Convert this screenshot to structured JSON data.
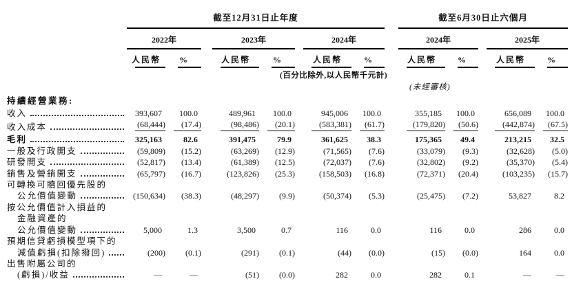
{
  "table": {
    "header": {
      "annual_title": "截至12月31日止年度",
      "interim_title": "截至6月30日止六個月",
      "years": [
        "2022年",
        "2023年",
        "2024年",
        "2024年",
        "2025年"
      ],
      "currency_label": "人民幣",
      "percent_label": "%",
      "note": "(百分比除外,以人民幣千元計)",
      "unaudited": "(未經審核)"
    },
    "rows": [
      {
        "type": "section",
        "label": "持續經營業務:"
      },
      {
        "lines": [
          {
            "t": "收入",
            "i": 0
          }
        ],
        "dots": true,
        "values": [
          "393,607",
          "100.0",
          "489,961",
          "100.0",
          "945,006",
          "100.0",
          "355,185",
          "100.0",
          "656,089",
          "100.0"
        ]
      },
      {
        "lines": [
          {
            "t": "收入成本",
            "i": 0
          }
        ],
        "dots": true,
        "rule": true,
        "values": [
          "(68,444)",
          "(17.4)",
          "(98,486)",
          "(20.1)",
          "(583,381)",
          "(61.7)",
          "(179,820)",
          "(50.6)",
          "(442,874)",
          "(67.5)"
        ]
      },
      {
        "lines": [
          {
            "t": "毛利",
            "i": 0
          }
        ],
        "dots": true,
        "bold": true,
        "gross": true,
        "values": [
          "325,163",
          "82.6",
          "391,475",
          "79.9",
          "361,625",
          "38.3",
          "175,365",
          "49.4",
          "213,215",
          "32.5"
        ]
      },
      {
        "lines": [
          {
            "t": "一般及行政開支",
            "i": 0
          }
        ],
        "dots": true,
        "values": [
          "(59,809)",
          "(15.2)",
          "(63,269)",
          "(12.9)",
          "(71,565)",
          "(7.6)",
          "(33,079)",
          "(9.3)",
          "(32,628)",
          "(5.0)"
        ]
      },
      {
        "lines": [
          {
            "t": "研發開支",
            "i": 0
          }
        ],
        "dots": true,
        "values": [
          "(52,817)",
          "(13.4)",
          "(61,389)",
          "(12.5)",
          "(72,037)",
          "(7.6)",
          "(32,802)",
          "(9.2)",
          "(35,370)",
          "(5.4)"
        ]
      },
      {
        "lines": [
          {
            "t": "銷售及營銷開支",
            "i": 0
          }
        ],
        "dots": true,
        "values": [
          "(65,797)",
          "(16.7)",
          "(123,826)",
          "(25.3)",
          "(158,503)",
          "(16.8)",
          "(72,371)",
          "(20.4)",
          "(103,235)",
          "(15.7)"
        ]
      },
      {
        "lines": [
          {
            "t": "可轉換可贖回優先股的",
            "i": 0
          },
          {
            "t": "公允價值變動",
            "i": 1
          }
        ],
        "dots": true,
        "values": [
          "(150,634)",
          "(38.3)",
          "(48,297)",
          "(9.9)",
          "(50,374)",
          "(5.3)",
          "(25,475)",
          "(7.2)",
          "53,827",
          "8.2"
        ]
      },
      {
        "lines": [
          {
            "t": "按公允價值計入損益的",
            "i": 0
          },
          {
            "t": "金融資產的",
            "i": 1
          },
          {
            "t": "公允價值變動",
            "i": 1
          }
        ],
        "dots": true,
        "values": [
          "5,000",
          "1.3",
          "3,500",
          "0.7",
          "116",
          "0.0",
          "116",
          "0.0",
          "286",
          "0.0"
        ]
      },
      {
        "lines": [
          {
            "t": "預期信貸虧損模型項下的",
            "i": 0
          },
          {
            "t": "減值虧損(扣除撥回)",
            "i": 1
          }
        ],
        "dots": true,
        "values": [
          "(200)",
          "(0.1)",
          "(291)",
          "(0.1)",
          "(44)",
          "(0.0)",
          "(15)",
          "(0.0)",
          "164",
          "0.0"
        ]
      },
      {
        "lines": [
          {
            "t": "出售附屬公司的",
            "i": 0
          },
          {
            "t": "(虧損)/收益",
            "i": 1
          }
        ],
        "dots": true,
        "values": [
          "—",
          "—",
          "(51)",
          "(0.0)",
          "282",
          "0.0",
          "282",
          "0.1",
          "—",
          "—"
        ]
      }
    ]
  }
}
